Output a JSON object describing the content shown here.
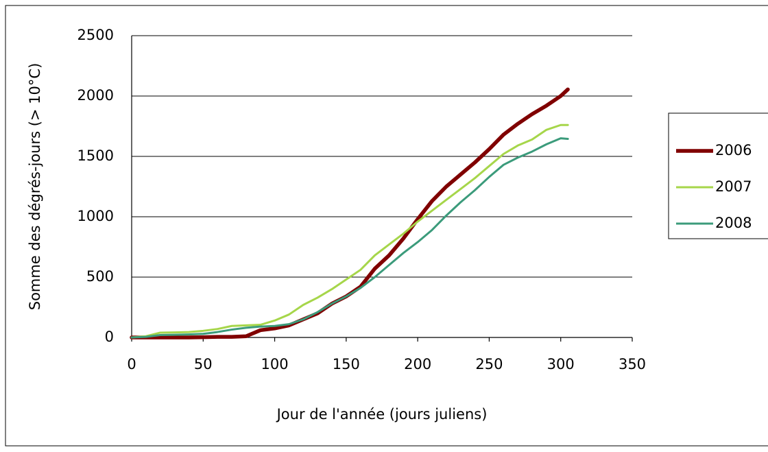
{
  "chart_data": {
    "type": "line",
    "x_label": "Jour de l'année (jours juliens)",
    "y_label": "Somme des dégrés-jours (> 10°C)",
    "x": [
      0,
      10,
      20,
      30,
      40,
      50,
      60,
      70,
      80,
      90,
      100,
      110,
      120,
      130,
      140,
      150,
      160,
      170,
      180,
      190,
      200,
      210,
      220,
      230,
      240,
      250,
      260,
      270,
      280,
      290,
      300,
      305
    ],
    "series": [
      {
        "name": "2006",
        "color": "#800000",
        "values": [
          0,
          0,
          0,
          0,
          0,
          2,
          5,
          5,
          10,
          60,
          75,
          100,
          150,
          200,
          280,
          340,
          420,
          570,
          680,
          820,
          980,
          1130,
          1250,
          1350,
          1450,
          1560,
          1680,
          1770,
          1850,
          1920,
          2000,
          2055
        ]
      },
      {
        "name": "2007",
        "color": "#a6d64a",
        "values": [
          0,
          10,
          40,
          42,
          45,
          55,
          70,
          95,
          100,
          105,
          140,
          190,
          270,
          330,
          400,
          480,
          560,
          680,
          770,
          860,
          960,
          1050,
          1140,
          1230,
          1320,
          1420,
          1520,
          1590,
          1640,
          1720,
          1760,
          1760
        ]
      },
      {
        "name": "2008",
        "color": "#3b9b7b",
        "values": [
          0,
          5,
          20,
          22,
          25,
          30,
          45,
          65,
          80,
          90,
          95,
          110,
          150,
          210,
          280,
          340,
          410,
          500,
          600,
          700,
          790,
          890,
          1010,
          1120,
          1220,
          1330,
          1430,
          1490,
          1540,
          1600,
          1650,
          1645
        ]
      }
    ],
    "xlim": [
      0,
      350
    ],
    "xticks": [
      0,
      50,
      100,
      150,
      200,
      250,
      300,
      350
    ],
    "ylim": [
      0,
      2500
    ],
    "yticks": [
      0,
      500,
      1000,
      1500,
      2000,
      2500
    ],
    "grid": true,
    "legend": "right"
  }
}
